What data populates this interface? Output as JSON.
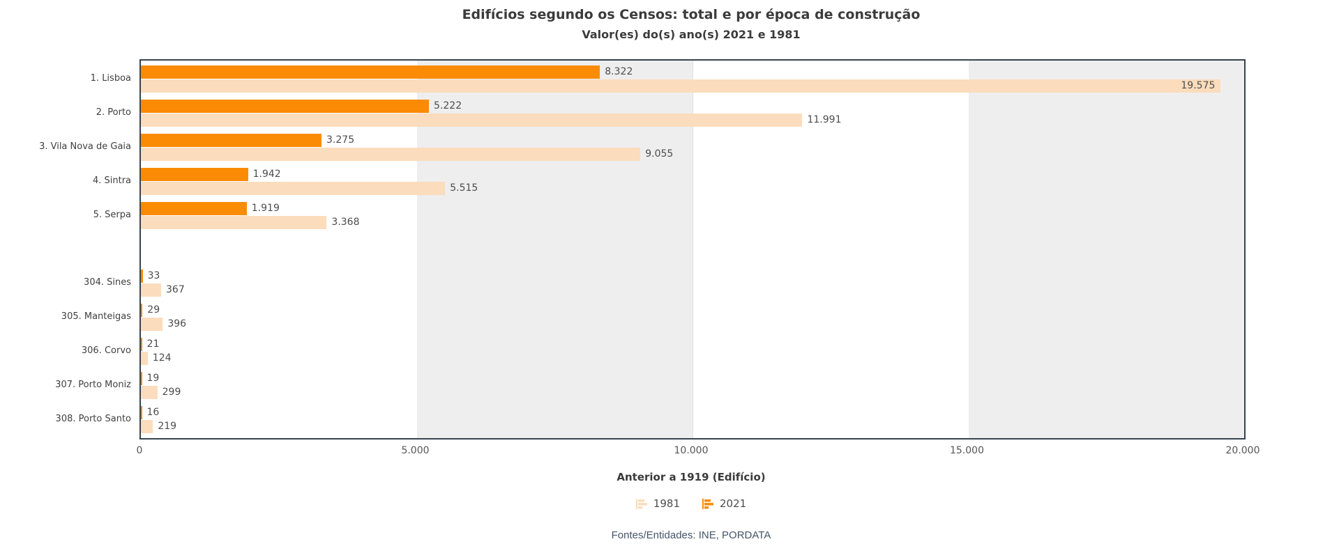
{
  "title": "Edifícios segundo os Censos: total e por época de construção",
  "subtitle": "Valor(es) do(s) ano(s) 2021 e 1981",
  "footer": "Fontes/Entidades: INE, PORDATA",
  "colors": {
    "serie_2021": "#fb8b05",
    "serie_1981": "#fbdcbc",
    "band_gray": "#eeeeee",
    "plot_border": "#35434f",
    "text": "#3d3d3d"
  },
  "chart_data": {
    "type": "bar",
    "orientation": "horizontal",
    "title": "Edifícios segundo os Censos: total e por época de construção",
    "subtitle": "Valor(es) do(s) ano(s) 2021 e 1981",
    "xlabel": "Anterior a 1919 (Edifício)",
    "ylabel": "",
    "xlim": [
      0,
      20000
    ],
    "x_ticks": [
      "0",
      "5.000",
      "10.000",
      "15.000",
      "20.000"
    ],
    "grid": "alternating vertical bands",
    "legend_position": "bottom",
    "legend": [
      "1981",
      "2021"
    ],
    "categories": [
      "1. Lisboa",
      "2. Porto",
      "3. Vila Nova de Gaia",
      "4. Sintra",
      "5. Serpa",
      "304. Sines",
      "305. Manteigas",
      "306. Corvo",
      "307. Porto Moniz",
      "308. Porto Santo"
    ],
    "group_gap_after_index": 4,
    "series": [
      {
        "name": "2021",
        "values": [
          8322,
          5222,
          3275,
          1942,
          1919,
          33,
          29,
          21,
          19,
          16
        ],
        "labels": [
          "8.322",
          "5.222",
          "3.275",
          "1.942",
          "1.919",
          "33",
          "29",
          "21",
          "19",
          "16"
        ]
      },
      {
        "name": "1981",
        "values": [
          19575,
          11991,
          9055,
          5515,
          3368,
          367,
          396,
          124,
          299,
          219
        ],
        "labels": [
          "19.575",
          "11.991",
          "9.055",
          "5.515",
          "3.368",
          "367",
          "396",
          "124",
          "299",
          "219"
        ]
      }
    ]
  }
}
